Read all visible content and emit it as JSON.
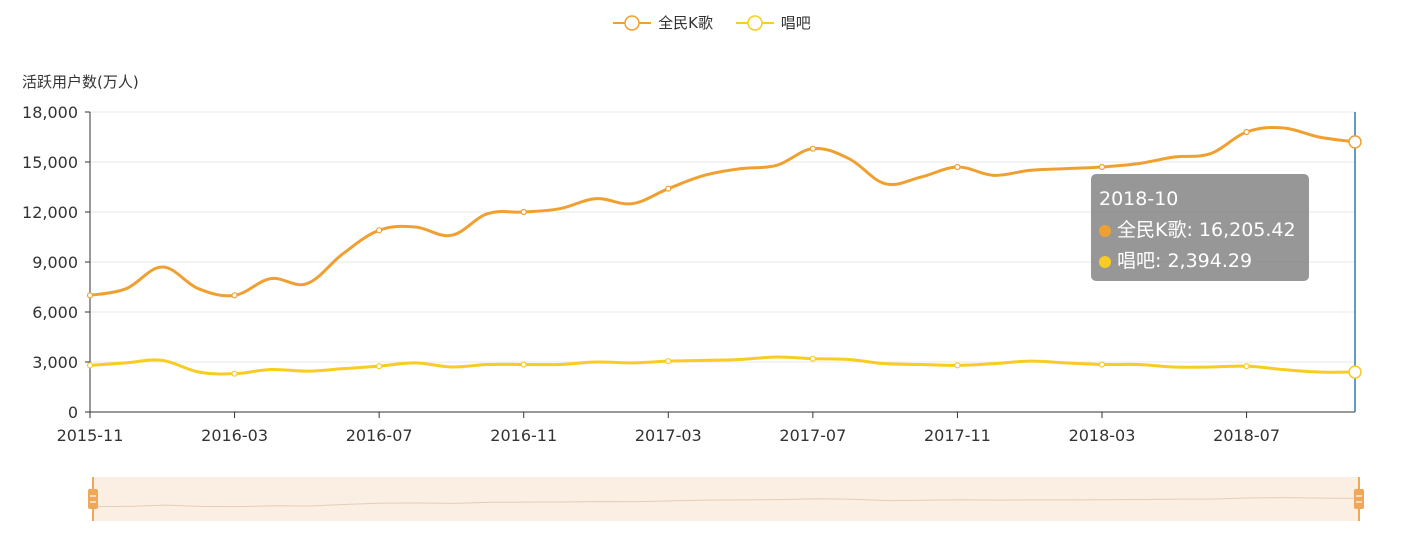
{
  "legend": [
    {
      "name": "全民K歌",
      "color": "#f0a030"
    },
    {
      "name": "唱吧",
      "color": "#f8cc22"
    }
  ],
  "tooltip": {
    "title": "2018-10",
    "rows": [
      {
        "label": "全民K歌: 16,205.42",
        "color": "#f0a030"
      },
      {
        "label": "唱吧: 2,394.29",
        "color": "#f8cc22"
      }
    ]
  },
  "chart_data": {
    "type": "line",
    "title": "",
    "xlabel": "",
    "ylabel": "活跃用户数(万人)",
    "ylim": [
      0,
      18000
    ],
    "yticks": [
      0,
      3000,
      6000,
      9000,
      12000,
      15000,
      18000
    ],
    "ytick_labels": [
      "0",
      "3,000",
      "6,000",
      "9,000",
      "12,000",
      "15,000",
      "18,000"
    ],
    "grid": true,
    "legend_position": "top-center",
    "x": [
      "2015-11",
      "2015-12",
      "2016-01",
      "2016-02",
      "2016-03",
      "2016-04",
      "2016-05",
      "2016-06",
      "2016-07",
      "2016-08",
      "2016-09",
      "2016-10",
      "2016-11",
      "2016-12",
      "2017-01",
      "2017-02",
      "2017-03",
      "2017-04",
      "2017-05",
      "2017-06",
      "2017-07",
      "2017-08",
      "2017-09",
      "2017-10",
      "2017-11",
      "2017-12",
      "2018-01",
      "2018-02",
      "2018-03",
      "2018-04",
      "2018-05",
      "2018-06",
      "2018-07",
      "2018-08",
      "2018-09",
      "2018-10"
    ],
    "xtick_labels": [
      "2015-11",
      "2016-03",
      "2016-07",
      "2016-11",
      "2017-03",
      "2017-07",
      "2017-11",
      "2018-03",
      "2018-07"
    ],
    "xtick_every": 4,
    "series": [
      {
        "name": "全民K歌",
        "color": "#f0a030",
        "values": [
          7000,
          7400,
          8700,
          7400,
          7000,
          8000,
          7700,
          9500,
          10900,
          11100,
          10600,
          11900,
          12000,
          12200,
          12800,
          12500,
          13400,
          14200,
          14600,
          14800,
          15800,
          15200,
          13700,
          14100,
          14700,
          14200,
          14500,
          14600,
          14700,
          14900,
          15300,
          15500,
          16800,
          17050,
          16500,
          16205.42
        ]
      },
      {
        "name": "唱吧",
        "color": "#f8cc22",
        "values": [
          2800,
          2950,
          3100,
          2400,
          2300,
          2550,
          2450,
          2600,
          2750,
          2950,
          2700,
          2850,
          2850,
          2850,
          3000,
          2950,
          3050,
          3100,
          3150,
          3300,
          3200,
          3150,
          2900,
          2850,
          2800,
          2900,
          3050,
          2950,
          2850,
          2850,
          2700,
          2700,
          2750,
          2550,
          2400,
          2394.29
        ]
      }
    ]
  }
}
